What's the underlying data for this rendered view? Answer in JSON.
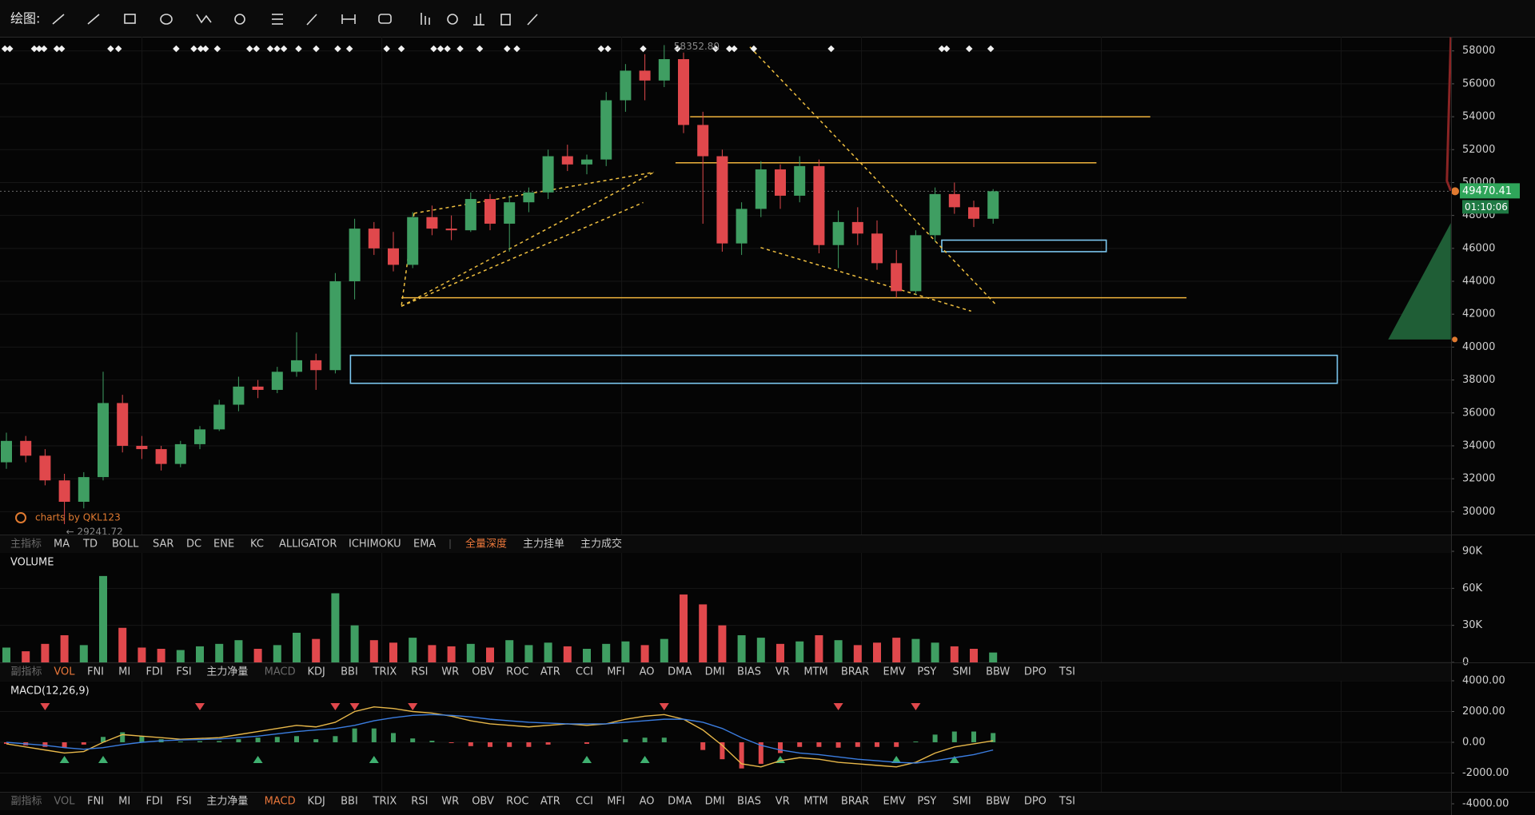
{
  "toolbar": {
    "label": "绘图:"
  },
  "indicator_bars": [
    {
      "label": "主指标",
      "items": [
        "MA",
        "TD",
        "BOLL",
        "SAR",
        "DC",
        "ENE",
        "KC",
        "ALLIGATOR",
        "ICHIMOKU",
        "EMA"
      ],
      "extra": [
        "全量深度",
        "主力挂单",
        "主力成交"
      ],
      "active_extra": 0
    },
    {
      "label": "副指标",
      "items": [
        "VOL",
        "FNI",
        "MI",
        "FDI",
        "FSI",
        "主力净量",
        "MACD",
        "KDJ",
        "BBI",
        "TRIX",
        "RSI",
        "WR",
        "OBV",
        "ROC",
        "ATR",
        "CCI",
        "MFI",
        "AO",
        "DMA",
        "DMI",
        "BIAS",
        "VR",
        "MTM",
        "BRAR",
        "EMV",
        "PSY",
        "SMI",
        "BBW",
        "DPO",
        "TSI"
      ],
      "active": 0,
      "muted": 6
    },
    {
      "label": "副指标",
      "items": [
        "VOL",
        "FNI",
        "MI",
        "FDI",
        "FSI",
        "主力净量",
        "MACD",
        "KDJ",
        "BBI",
        "TRIX",
        "RSI",
        "WR",
        "OBV",
        "ROC",
        "ATR",
        "CCI",
        "MFI",
        "AO",
        "DMA",
        "DMI",
        "BIAS",
        "VR",
        "MTM",
        "BRAR",
        "EMV",
        "PSY",
        "SMI",
        "BBW",
        "DPO",
        "TSI"
      ],
      "active": 6,
      "muted": 0
    }
  ],
  "chart_data": [
    {
      "type": "candlestick",
      "up_color": "#3f9e62",
      "down_color": "#e0484c",
      "grid": true,
      "open": [
        33000,
        34300,
        33400,
        31900,
        30600,
        32100,
        36600,
        34000,
        33800,
        32900,
        34100,
        35000,
        36500,
        37600,
        37400,
        38500,
        39200,
        38600,
        44000,
        47200,
        46000,
        45000,
        47900,
        47200,
        47100,
        49000,
        47500,
        48800,
        49400,
        51600,
        51100,
        51400,
        55000,
        56800,
        56200,
        57500,
        53500,
        51600,
        46300,
        48400,
        50800,
        49200,
        51000,
        46200,
        47600,
        46900,
        45100,
        43400,
        46800,
        49300,
        48500,
        47800
      ],
      "high": [
        34800,
        34600,
        33800,
        32300,
        32400,
        38500,
        37100,
        34600,
        34000,
        34300,
        35200,
        36800,
        38200,
        38000,
        38800,
        40900,
        39600,
        44500,
        47800,
        47600,
        47000,
        48200,
        48600,
        48000,
        49400,
        49300,
        49200,
        49700,
        52000,
        52300,
        51700,
        55500,
        57200,
        57800,
        58352.8,
        57900,
        54300,
        52000,
        48800,
        51300,
        51100,
        51600,
        51400,
        48300,
        48500,
        47700,
        45900,
        47100,
        49700,
        50000,
        48900,
        49600
      ],
      "low": [
        32600,
        33000,
        31600,
        29241.72,
        30200,
        31900,
        33600,
        33200,
        32500,
        32700,
        33800,
        34900,
        36100,
        36900,
        37200,
        38200,
        37400,
        38400,
        42900,
        45600,
        44600,
        44800,
        46800,
        46500,
        47000,
        47100,
        45800,
        48200,
        49000,
        50700,
        50500,
        51000,
        54300,
        55000,
        55800,
        53000,
        47500,
        45800,
        45600,
        47900,
        48400,
        48800,
        45700,
        44800,
        46200,
        44700,
        43000,
        43200,
        46400,
        48100,
        47300,
        47500
      ],
      "close": [
        34300,
        33400,
        31900,
        30600,
        32100,
        36600,
        34000,
        33800,
        32900,
        34100,
        35000,
        36500,
        37600,
        37400,
        38500,
        39200,
        38600,
        44000,
        47200,
        46000,
        45000,
        47900,
        47200,
        47100,
        49000,
        47500,
        48800,
        49400,
        51600,
        51100,
        51400,
        55000,
        56800,
        56200,
        57500,
        53500,
        51600,
        46300,
        48400,
        50800,
        49200,
        51000,
        46200,
        47600,
        46900,
        45100,
        43400,
        46800,
        49300,
        48500,
        47800,
        49470.41
      ],
      "ylim": [
        28560,
        58860
      ],
      "yticks": [
        30000,
        32000,
        34000,
        36000,
        38000,
        40000,
        42000,
        44000,
        46000,
        48000,
        50000,
        52000,
        54000,
        56000,
        58000
      ],
      "last_price": 49470.41,
      "countdown": "01:10:06",
      "high_label": {
        "value": 58352.8,
        "label": "58352.80"
      },
      "low_label": {
        "value": 29241.72,
        "label": "← 29241.72"
      },
      "levels": [
        54000,
        51200,
        43000
      ],
      "zones": [
        [
          37800,
          39500
        ],
        [
          45800,
          46500
        ]
      ],
      "watermark": "charts by QKL123"
    },
    {
      "type": "bar",
      "title": "VOLUME",
      "values": [
        12000,
        9000,
        15000,
        22000,
        14000,
        70000,
        28000,
        12000,
        11000,
        10000,
        13000,
        15000,
        18000,
        11000,
        14000,
        24000,
        19000,
        56000,
        30000,
        18000,
        16000,
        20000,
        14000,
        13000,
        15000,
        12000,
        18000,
        14000,
        16000,
        13000,
        11000,
        15000,
        17000,
        14000,
        19000,
        55000,
        47000,
        30000,
        22000,
        20000,
        15000,
        17000,
        22000,
        18000,
        14000,
        16000,
        20000,
        19000,
        16000,
        13000,
        11000,
        8000
      ],
      "ylim": [
        0,
        90000
      ],
      "yticks": [
        {
          "value": 0,
          "label": "0"
        },
        {
          "value": 30000,
          "label": "30K"
        },
        {
          "value": 60000,
          "label": "60K"
        },
        {
          "value": 90000,
          "label": "90K"
        }
      ]
    },
    {
      "type": "macd",
      "title": "MACD(12,26,9)",
      "series": [
        {
          "color": "#e8b84a",
          "values": [
            -100,
            -300,
            -500,
            -700,
            -600,
            0,
            500,
            400,
            300,
            200,
            250,
            300,
            500,
            700,
            900,
            1100,
            1000,
            1300,
            2000,
            2300,
            2200,
            2000,
            1900,
            1700,
            1400,
            1200,
            1100,
            1000,
            1100,
            1200,
            1100,
            1200,
            1500,
            1700,
            1800,
            1500,
            800,
            -200,
            -1400,
            -1600,
            -1200,
            -1000,
            -1100,
            -1300,
            -1400,
            -1500,
            -1600,
            -1300,
            -700,
            -300,
            -100,
            100
          ]
        },
        {
          "color": "#3b7de0",
          "values": [
            0,
            -100,
            -200,
            -350,
            -450,
            -350,
            -150,
            0,
            100,
            150,
            180,
            220,
            300,
            400,
            550,
            700,
            800,
            900,
            1100,
            1400,
            1600,
            1750,
            1800,
            1750,
            1650,
            1500,
            1400,
            1300,
            1250,
            1200,
            1200,
            1200,
            1300,
            1400,
            1500,
            1500,
            1300,
            900,
            300,
            -200,
            -500,
            -700,
            -800,
            -950,
            -1100,
            -1200,
            -1300,
            -1350,
            -1200,
            -1000,
            -800,
            -500
          ]
        }
      ],
      "histogram": [
        -100,
        -200,
        -300,
        -350,
        -150,
        350,
        650,
        400,
        200,
        50,
        70,
        80,
        200,
        300,
        350,
        400,
        200,
        400,
        900,
        900,
        600,
        250,
        100,
        -50,
        -250,
        -300,
        -300,
        -300,
        -150,
        0,
        -100,
        0,
        200,
        300,
        300,
        0,
        -500,
        -1100,
        -1700,
        -1400,
        -700,
        -300,
        -300,
        -350,
        -300,
        -300,
        -300,
        50,
        500,
        700,
        700,
        600
      ],
      "ylim": [
        -4000,
        4000
      ],
      "yticks": [
        {
          "value": 4000,
          "label": "4000.00"
        },
        {
          "value": 2000,
          "label": "2000.00"
        },
        {
          "value": 0,
          "label": "0.00"
        },
        {
          "value": -2000,
          "label": "-2000.00"
        },
        {
          "value": -4000,
          "label": "-4000.00"
        }
      ]
    }
  ]
}
